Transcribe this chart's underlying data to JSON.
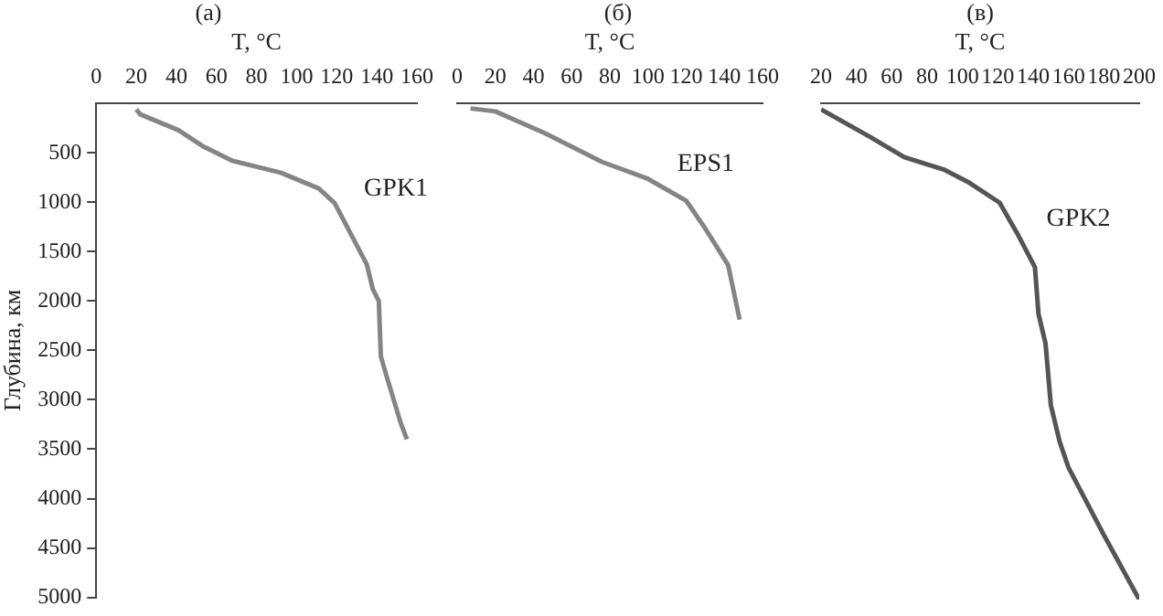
{
  "chart_data": [
    {
      "type": "line",
      "title": "(а)",
      "xlabel": "T, °C",
      "ylabel": "Глубина, км",
      "xlim": [
        0,
        160
      ],
      "xticks": [
        0,
        20,
        40,
        60,
        80,
        100,
        120,
        140,
        160
      ],
      "ylim": [
        5000,
        0
      ],
      "yticks": [
        500,
        1000,
        1500,
        2000,
        2500,
        3000,
        3500,
        4000,
        4500,
        5000
      ],
      "grid": false,
      "legend": false,
      "series": [
        {
          "name": "GPK1",
          "color": "#858585",
          "x": [
            20,
            22,
            41,
            53,
            68,
            92,
            111,
            119,
            127,
            135,
            138,
            141,
            142,
            145,
            152,
            155
          ],
          "values": [
            60,
            110,
            270,
            430,
            580,
            700,
            860,
            1010,
            1320,
            1630,
            1880,
            2000,
            2560,
            2770,
            3240,
            3400
          ]
        }
      ]
    },
    {
      "type": "line",
      "title": "(б)",
      "xlabel": "T, °C",
      "xlim": [
        0,
        160
      ],
      "xticks": [
        0,
        20,
        40,
        60,
        80,
        100,
        120,
        140,
        160
      ],
      "ylim": [
        5000,
        0
      ],
      "tick_labels": "x",
      "grid": false,
      "legend": false,
      "series": [
        {
          "name": "EPS1",
          "color": "#858585",
          "x": [
            7,
            20,
            46,
            76,
            100,
            120,
            130,
            142,
            148
          ],
          "values": [
            50,
            80,
            300,
            590,
            760,
            980,
            1260,
            1630,
            2180
          ]
        }
      ]
    },
    {
      "type": "line",
      "title": "(в)",
      "xlabel": "T, °C",
      "xlim": [
        20,
        200
      ],
      "xticks": [
        20,
        40,
        60,
        80,
        100,
        120,
        140,
        160,
        180,
        200
      ],
      "ylim": [
        5000,
        0
      ],
      "tick_labels": "x",
      "grid": false,
      "legend": false,
      "series": [
        {
          "name": "GPK2",
          "color": "#555555",
          "x": [
            20,
            48,
            67,
            90,
            103,
            121,
            131,
            141,
            143,
            147,
            150,
            155,
            160,
            180,
            200
          ],
          "values": [
            60,
            340,
            540,
            670,
            790,
            1000,
            1310,
            1650,
            2120,
            2420,
            3040,
            3410,
            3670,
            4350,
            5000
          ]
        }
      ]
    }
  ]
}
